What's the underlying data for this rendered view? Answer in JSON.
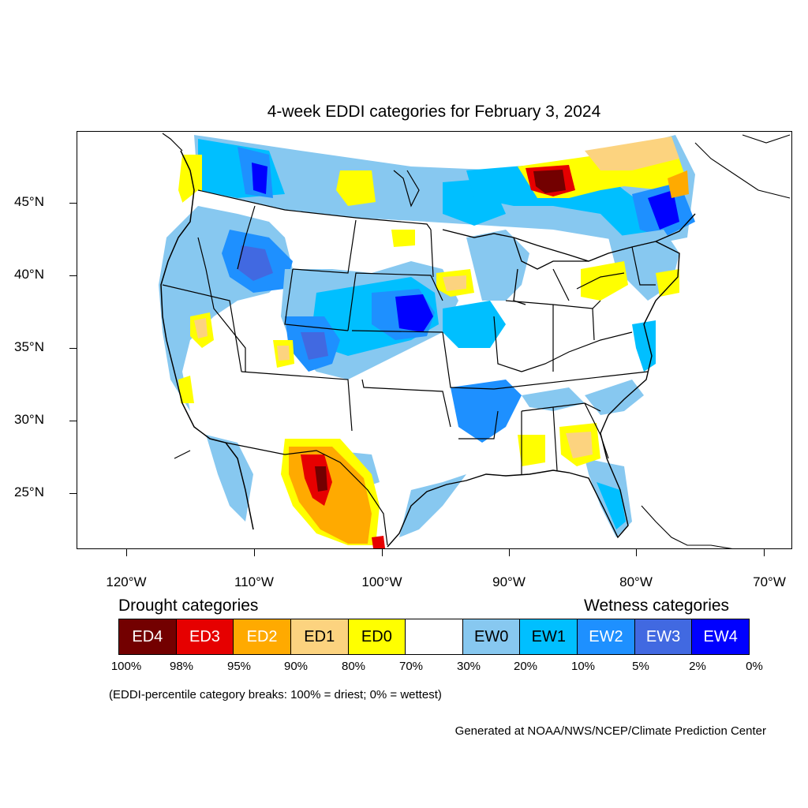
{
  "title": "4-week EDDI categories for February 3, 2024",
  "lat_labels": [
    "45°N",
    "40°N",
    "35°N",
    "30°N",
    "25°N"
  ],
  "lon_labels": [
    "120°W",
    "110°W",
    "100°W",
    "90°W",
    "80°W",
    "70°W"
  ],
  "legend": {
    "drought_heading": "Drought categories",
    "wetness_heading": "Wetness categories",
    "categories": [
      {
        "label": "ED4",
        "color": "#730000",
        "text_color": "#ffffff"
      },
      {
        "label": "ED3",
        "color": "#e60000",
        "text_color": "#ffffff"
      },
      {
        "label": "ED2",
        "color": "#ffaa00",
        "text_color": "#ffffff"
      },
      {
        "label": "ED1",
        "color": "#fcd37f",
        "text_color": "#000000"
      },
      {
        "label": "ED0",
        "color": "#ffff00",
        "text_color": "#000000"
      },
      {
        "label": "",
        "color": "#ffffff",
        "text_color": "#000000"
      },
      {
        "label": "EW0",
        "color": "#87c8f0",
        "text_color": "#000000"
      },
      {
        "label": "EW1",
        "color": "#00bfff",
        "text_color": "#000000"
      },
      {
        "label": "EW2",
        "color": "#1e90ff",
        "text_color": "#ffffff"
      },
      {
        "label": "EW3",
        "color": "#4169e1",
        "text_color": "#ffffff"
      },
      {
        "label": "EW4",
        "color": "#0000ff",
        "text_color": "#ffffff"
      }
    ],
    "percent_breaks": [
      "100%",
      "98%",
      "95%",
      "90%",
      "80%",
      "70%",
      "30%",
      "20%",
      "10%",
      "5%",
      "2%",
      "0%"
    ],
    "note": "(EDDI-percentile category breaks: 100% = driest; 0% = wettest)"
  },
  "credit": "Generated at NOAA/NWS/NCEP/Climate Prediction Center"
}
